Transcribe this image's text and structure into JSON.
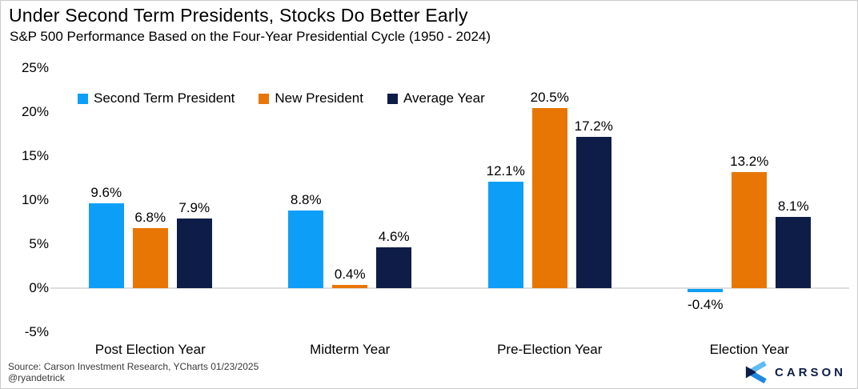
{
  "header": {
    "title": "Under Second Term Presidents, Stocks Do Better Early",
    "subtitle": "S&P 500 Performance Based on the Four-Year Presidential Cycle (1950 - 2024)"
  },
  "chart_data": {
    "type": "bar",
    "title": "Under Second Term Presidents, Stocks Do Better Early",
    "subtitle": "S&P 500 Performance Based on the Four-Year Presidential Cycle (1950 - 2024)",
    "categories": [
      "Post Election Year",
      "Midterm Year",
      "Pre-Election Year",
      "Election Year"
    ],
    "series": [
      {
        "name": "Second Term President",
        "color": "#0d9ff7",
        "values": [
          9.6,
          8.8,
          12.1,
          -0.4
        ]
      },
      {
        "name": "New President",
        "color": "#e87605",
        "values": [
          6.8,
          0.4,
          20.5,
          13.2
        ]
      },
      {
        "name": "Average Year",
        "color": "#0e1c48",
        "values": [
          7.9,
          4.6,
          17.2,
          8.1
        ]
      }
    ],
    "value_label_suffix": "%",
    "yticks": [
      25,
      20,
      15,
      10,
      5,
      0,
      -5
    ],
    "ytick_suffix": "%",
    "ylim": [
      -5,
      25
    ],
    "grid": false,
    "legend_position": "top-left"
  },
  "footer": {
    "source_line1": "Source: Carson Investment Research, YCharts 01/23/2025",
    "source_line2": "@ryandetrick",
    "logo_text": "CARSON"
  }
}
